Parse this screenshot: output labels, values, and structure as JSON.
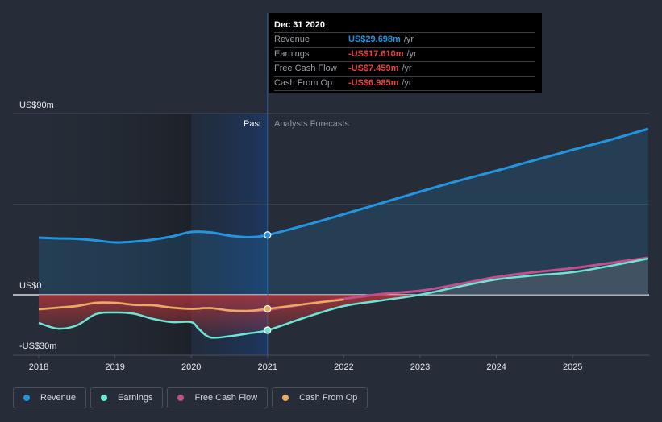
{
  "tooltip": {
    "date": "Dec 31 2020",
    "rows": [
      {
        "name": "Revenue",
        "value": "US$29.698m",
        "unit": "/yr",
        "color": "#2394df"
      },
      {
        "name": "Earnings",
        "value": "-US$17.610m",
        "unit": "/yr",
        "color": "#e64141"
      },
      {
        "name": "Free Cash Flow",
        "value": "-US$7.459m",
        "unit": "/yr",
        "color": "#e64141"
      },
      {
        "name": "Cash From Op",
        "value": "-US$6.985m",
        "unit": "/yr",
        "color": "#e64141"
      }
    ]
  },
  "legend": [
    {
      "label": "Revenue",
      "color": "#2394df"
    },
    {
      "label": "Earnings",
      "color": "#6ce5d3"
    },
    {
      "label": "Free Cash Flow",
      "color": "#c44d8c"
    },
    {
      "label": "Cash From Op",
      "color": "#e9ac5b"
    }
  ],
  "chart_data": {
    "type": "line",
    "title": "",
    "xlabel": "",
    "ylabel": "",
    "y_tick_labels": [
      "US$90m",
      "US$0",
      "-US$30m"
    ],
    "y_ticks": [
      90,
      0,
      -30
    ],
    "x_tick_labels": [
      "2018",
      "2019",
      "2020",
      "2021",
      "2022",
      "2023",
      "2024",
      "2025"
    ],
    "x_ticks": [
      2018,
      2019,
      2020,
      2021,
      2022,
      2023,
      2024,
      2025
    ],
    "xlim": [
      2017.7,
      2026.0
    ],
    "ylim": [
      -30,
      90
    ],
    "grid": true,
    "past_label": "Past",
    "forecast_label": "Analysts Forecasts",
    "divider_x": 2021.0,
    "highlight_start": 2020.0,
    "series": [
      {
        "name": "Revenue",
        "color": "#2394df",
        "x": [
          2018.0,
          2018.25,
          2018.5,
          2018.75,
          2019.0,
          2019.25,
          2019.5,
          2019.75,
          2020.0,
          2020.25,
          2020.5,
          2020.75,
          2021.0,
          2021.5,
          2022.0,
          2022.5,
          2023.0,
          2023.5,
          2024.0,
          2024.5,
          2025.0,
          2025.5,
          2025.99
        ],
        "y": [
          28.4,
          28.0,
          27.8,
          27.0,
          26.0,
          26.4,
          27.4,
          29.0,
          31.2,
          31.0,
          29.4,
          28.6,
          29.7,
          34.6,
          40.0,
          45.6,
          51.2,
          56.6,
          61.6,
          66.8,
          72.0,
          77.0,
          82.4
        ]
      },
      {
        "name": "Earnings",
        "color": "#6ce5d3",
        "x": [
          2018.0,
          2018.25,
          2018.5,
          2018.75,
          2019.0,
          2019.25,
          2019.5,
          2019.75,
          2020.0,
          2020.1,
          2020.25,
          2020.5,
          2020.75,
          2021.0,
          2021.5,
          2022.0,
          2022.5,
          2023.0,
          2023.5,
          2024.0,
          2024.5,
          2025.0,
          2025.5,
          2025.99
        ],
        "y": [
          -14.0,
          -16.8,
          -15.2,
          -9.6,
          -8.8,
          -9.4,
          -12.0,
          -13.6,
          -13.6,
          -17.0,
          -21.2,
          -20.6,
          -19.2,
          -17.6,
          -11.2,
          -5.6,
          -2.8,
          0.0,
          4.0,
          7.6,
          9.6,
          11.2,
          14.4,
          18.0
        ]
      },
      {
        "name": "Free Cash Flow",
        "color": "#c44d8c",
        "x": [
          2018.0,
          2018.25,
          2018.5,
          2018.75,
          2019.0,
          2019.25,
          2019.5,
          2019.75,
          2020.0,
          2020.25,
          2020.5,
          2020.75,
          2021.0,
          2021.5,
          2022.0,
          2022.5,
          2023.0,
          2023.5,
          2024.0,
          2024.5,
          2025.0,
          2025.5,
          2025.99
        ],
        "y": [
          -7.2,
          -6.4,
          -5.6,
          -4.0,
          -4.0,
          -5.0,
          -5.2,
          -6.4,
          -7.0,
          -6.6,
          -7.8,
          -8.0,
          -7.5,
          -4.6,
          -2.0,
          0.4,
          2.0,
          5.2,
          8.8,
          11.2,
          13.2,
          15.8,
          18.4
        ]
      },
      {
        "name": "Cash From Op",
        "color": "#e9ac5b",
        "x": [
          2018.0,
          2018.25,
          2018.5,
          2018.75,
          2019.0,
          2019.25,
          2019.5,
          2019.75,
          2020.0,
          2020.25,
          2020.5,
          2020.75,
          2021.0,
          2021.5,
          2022.0
        ],
        "y": [
          -7.2,
          -6.4,
          -5.6,
          -4.0,
          -4.0,
          -5.0,
          -5.2,
          -6.4,
          -7.0,
          -6.6,
          -7.8,
          -8.0,
          -7.0,
          -4.6,
          -2.4
        ]
      }
    ]
  }
}
